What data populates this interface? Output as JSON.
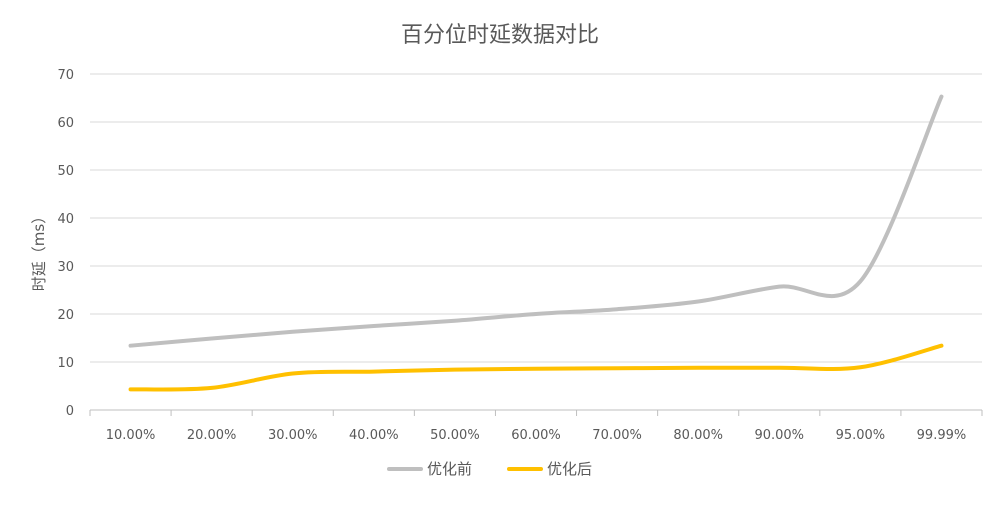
{
  "chart_data": {
    "type": "line",
    "title": "百分位时延数据对比",
    "xlabel": "",
    "ylabel": "时延（ms）",
    "categories": [
      "10.00%",
      "20.00%",
      "30.00%",
      "40.00%",
      "50.00%",
      "60.00%",
      "70.00%",
      "80.00%",
      "90.00%",
      "95.00%",
      "99.99%"
    ],
    "ylim": [
      0,
      70
    ],
    "yticks": [
      "0",
      "10",
      "20",
      "30",
      "40",
      "50",
      "60",
      "70"
    ],
    "grid": true,
    "smooth": true,
    "legend_position": "bottom",
    "series": [
      {
        "name": "优化前",
        "color": "#BFBFBF",
        "values": [
          13.4,
          14.9,
          16.3,
          17.5,
          18.6,
          20.0,
          21.0,
          22.6,
          25.7,
          26.8,
          65.3
        ]
      },
      {
        "name": "优化后",
        "color": "#FFC000",
        "values": [
          4.3,
          4.6,
          7.6,
          8.0,
          8.4,
          8.6,
          8.7,
          8.8,
          8.8,
          8.9,
          13.4
        ]
      }
    ]
  }
}
